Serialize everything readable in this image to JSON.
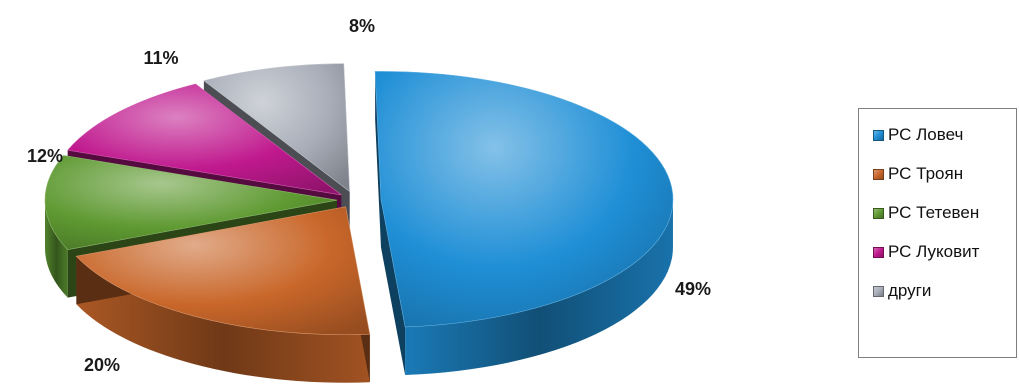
{
  "chart_data": {
    "type": "pie",
    "title": "",
    "slices": [
      {
        "name": "РС Ловеч",
        "value": 49,
        "label": "49%",
        "color": "#1f8fd6"
      },
      {
        "name": "РС Троян",
        "value": 20,
        "label": "20%",
        "color": "#c9672a"
      },
      {
        "name": "РС Тетевен",
        "value": 12,
        "label": "12%",
        "color": "#5f9a32"
      },
      {
        "name": "РС Луковит",
        "value": 11,
        "label": "11%",
        "color": "#c0198e"
      },
      {
        "name": "други",
        "value": 8,
        "label": "8%",
        "color": "#a8adb8"
      }
    ],
    "legend_position": "right",
    "style": "3d-exploded"
  }
}
